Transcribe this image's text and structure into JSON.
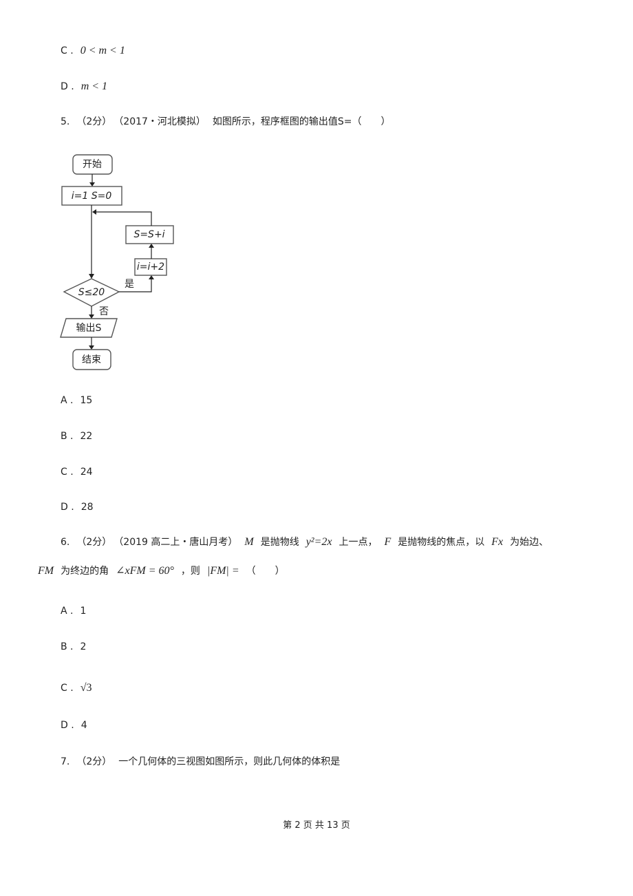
{
  "prev_options": [
    {
      "label": "C .",
      "value": "0 < m < 1"
    },
    {
      "label": "D .",
      "value": "m < 1"
    }
  ],
  "q5": {
    "number": "5.",
    "score": "（2分）",
    "source": "（2017・河北模拟）",
    "text": "如图所示，程序框图的输出值S=（　　）",
    "flowchart": {
      "start": "开始",
      "init": "i=1  S=0",
      "update_s": "S=S+i",
      "update_i": "i=i+2",
      "condition": "S≤20",
      "yes": "是",
      "no": "否",
      "output": "输出S",
      "end": "结束"
    },
    "options": [
      {
        "label": "A .",
        "value": "15"
      },
      {
        "label": "B .",
        "value": "22"
      },
      {
        "label": "C .",
        "value": "24"
      },
      {
        "label": "D .",
        "value": "28"
      }
    ]
  },
  "q6": {
    "number": "6.",
    "score": "（2分）",
    "source": "（2019 高二上・唐山月考）",
    "segments": [
      "M",
      "是抛物线",
      "y²=2x",
      "上一点，",
      "F",
      "是抛物线的焦点，以",
      "Fx",
      "为始边、"
    ],
    "segments2": [
      "FM",
      "为终边的角",
      "∠xFM = 60°",
      "，则",
      "|FM| =",
      "（　　）"
    ],
    "options": [
      {
        "label": "A .",
        "value": "1"
      },
      {
        "label": "B .",
        "value": "2"
      },
      {
        "label": "C .",
        "value": "√3"
      },
      {
        "label": "D .",
        "value": "4"
      }
    ]
  },
  "q7": {
    "number": "7.",
    "score": "（2分）",
    "text": "一个几何体的三视图如图所示，则此几何体的体积是"
  },
  "footer": "第 2 页 共 13 页"
}
